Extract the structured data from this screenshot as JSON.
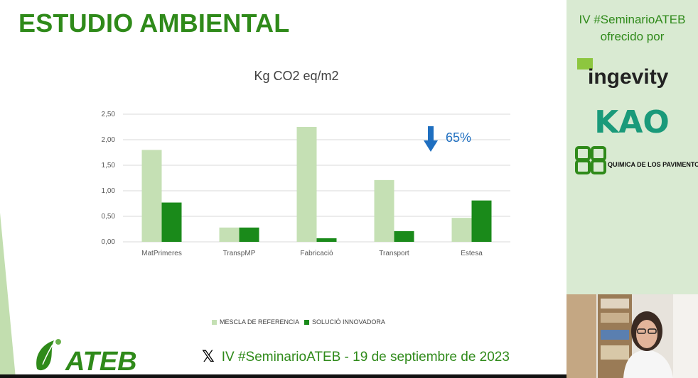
{
  "slide": {
    "title": "ESTUDIO AMBIENTAL",
    "footer_text": "IV #SeminarioATEB - 19 de septiembre de 2023",
    "logo_text": "ATEB"
  },
  "sidebar": {
    "line1": "IV #SeminarioATEB",
    "line2": "ofrecido por",
    "sponsors": [
      "ingevity",
      "KAO",
      "QUIMICA DE LOS PAVIMENTOS"
    ]
  },
  "chart_data": {
    "type": "bar",
    "title": "Kg CO2 eq/m2",
    "categories": [
      "MatPrimeres",
      "TranspMP",
      "Fabricació",
      "Transport",
      "Estesa"
    ],
    "series": [
      {
        "name": "MESCLA DE REFERENCIA",
        "color": "#c5e0b4",
        "values": [
          1.8,
          0.28,
          2.25,
          1.21,
          0.47
        ]
      },
      {
        "name": "SOLUCIÓ INNOVADORA",
        "color": "#1a8a1a",
        "values": [
          0.77,
          0.28,
          0.07,
          0.21,
          0.81
        ]
      }
    ],
    "yticks": [
      "0,00",
      "0,50",
      "1,00",
      "1,50",
      "2,00",
      "2,50"
    ],
    "ylim": [
      0,
      2.5
    ],
    "annotation": "65%",
    "grid": true,
    "legend": "bottom"
  }
}
